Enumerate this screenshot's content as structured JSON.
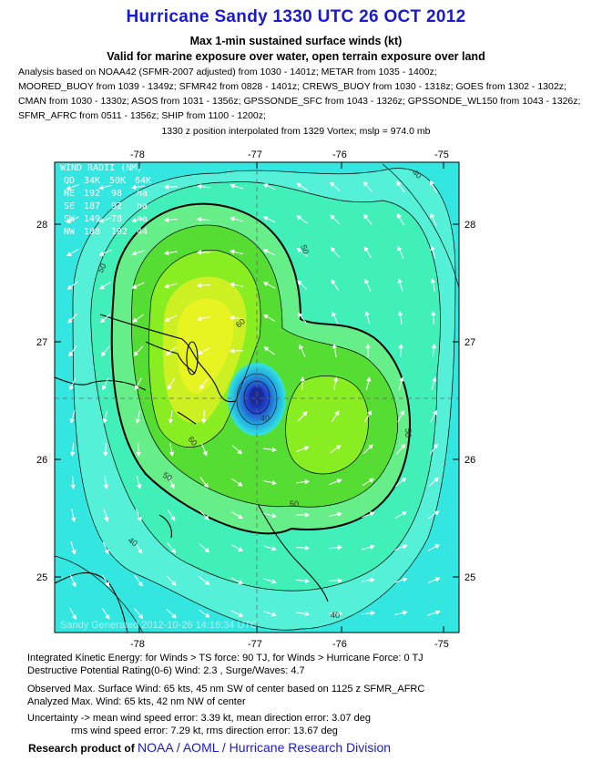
{
  "header": {
    "title": "Hurricane Sandy 1330 UTC 26 OCT 2012",
    "subtitle1": "Max 1-min sustained surface winds (kt)",
    "subtitle2": "Valid for marine exposure over water, open terrain exposure over land",
    "analysis_lines": [
      "Analysis based on NOAA42 (SFMR-2007 adjusted) from 1030 - 1401z; METAR from 1035 - 1400z;",
      "MOORED_BUOY from 1039 - 1349z; SFMR42 from 0828 - 1401z; CREWS_BUOY from 1030 - 1318z; GOES from 1302 - 1302z;",
      "CMAN from 1030 - 1330z; ASOS from 1031 - 1356z; GPSSONDE_SFC from 1043 - 1326z; GPSSONDE_WL150 from 1043 - 1326z;",
      "SFMR_AFRC from 0511 - 1356z; SHIP from 1100 - 1200z;"
    ],
    "position_note": "1330 z position interpolated from 1329 Vortex; mslp = 974.0 mb"
  },
  "map": {
    "lon_ticks": [
      "-78",
      "-77",
      "-76",
      "-75"
    ],
    "lat_ticks": [
      "28",
      "27",
      "26",
      "25"
    ],
    "contour_labels": [
      "40",
      "50",
      "60",
      "50",
      "40",
      "50",
      "40",
      "50",
      "60",
      "40",
      "50",
      "50",
      "40"
    ],
    "wind_radii": {
      "title": "WIND RADII (NM)",
      "header": [
        "QD",
        "34K",
        "50K",
        "64K"
      ],
      "rows": [
        [
          "NE",
          "192",
          "98",
          "na"
        ],
        [
          "SE",
          "187",
          "92",
          "na"
        ],
        [
          "SW",
          "149",
          "78",
          "na"
        ],
        [
          "NW",
          "188",
          "102",
          "44"
        ]
      ]
    },
    "watermark": "Sandy  Generated  2012-10-26 14:16:34 UTC",
    "colors": {
      "cyan": "#33e6e0",
      "light_cyan": "#55f0d8",
      "teal": "#40f0b8",
      "light_green": "#66ee88",
      "green": "#55dd33",
      "bright_green": "#88ee22",
      "yellow_green": "#ccf022",
      "yellow": "#e8f422",
      "deep_blue": "#1a2a9a"
    }
  },
  "footer": {
    "ike": "Integrated Kinetic Energy: for Winds > TS force: 90 TJ, for Winds > Hurricane Force: 0 TJ",
    "destructive": "Destructive Potential Rating(0-6)   Wind: 2.3 , Surge/Waves: 4.7",
    "observed_max": "Observed Max. Surface Wind: 65 kts, 45 nm SW of center based on 1125 z SFMR_AFRC",
    "analyzed_max": "Analyzed Max. Wind: 65 kts, 42 nm  NW of center",
    "uncertainty": "Uncertainty -> mean wind speed error: 3.39 kt, mean direction error: 3.07 deg",
    "rms": "rms wind speed error: 7.29 kt, rms direction error: 13.67 deg",
    "research_prefix": "Research product of",
    "org_link": "NOAA  /  AOML  /  Hurricane Research Division"
  }
}
